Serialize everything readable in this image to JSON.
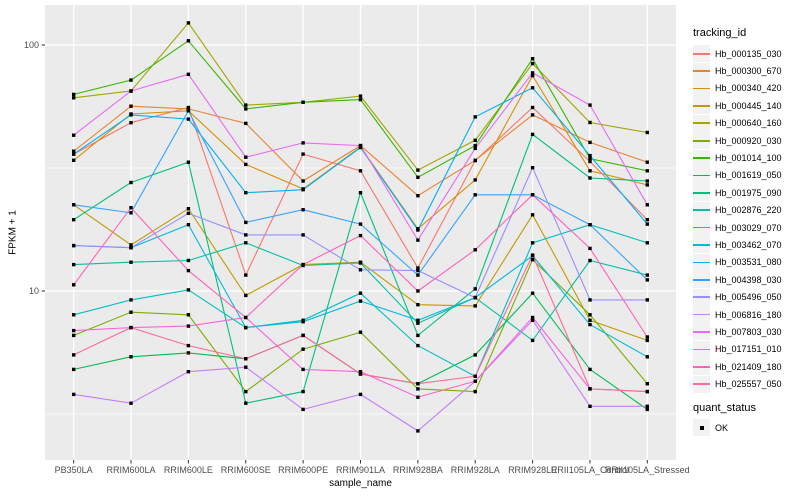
{
  "chart_data": {
    "type": "line",
    "title": "",
    "xlabel": "sample_name",
    "ylabel": "FPKM + 1",
    "y_scale": "log10",
    "ylim": [
      2.05,
      145
    ],
    "y_ticks": [
      10,
      100
    ],
    "y_minor_gridlines": [
      3.162,
      31.62
    ],
    "grid": "on",
    "panel_bg": "#EBEBEB",
    "grid_color": "#FFFFFF",
    "tick_label_color": "#4D4D4D",
    "point_shape": "filled-square",
    "point_color": "#000000",
    "categories": [
      "PB350LA",
      "RRIM600LA",
      "RRIM600LE",
      "RRIM600SE",
      "RRIM600PE",
      "RRIM901LA",
      "RRIM928BA",
      "RRIM928LA",
      "RRIM928LE",
      "RRII105LA_Control",
      "RRII105LA_Stressed"
    ],
    "series": [
      {
        "name": "Hb_000135_030",
        "color": "#F8766D",
        "values": [
          36,
          48.3,
          55.7,
          11.6,
          36,
          30.8,
          12.4,
          33.9,
          55.7,
          33.6,
          19.5
        ]
      },
      {
        "name": "Hb_000300_670",
        "color": "#EA8331",
        "values": [
          37,
          56.4,
          55,
          48,
          28,
          39,
          24.4,
          34,
          52,
          40.2,
          33.4
        ]
      },
      {
        "name": "Hb_000340_420",
        "color": "#D89000",
        "values": [
          34,
          52.4,
          54,
          32.7,
          26,
          38.5,
          17.9,
          28.3,
          75,
          30.8,
          27
        ]
      },
      {
        "name": "Hb_000445_140",
        "color": "#C09B00",
        "values": [
          22.4,
          15.4,
          21.6,
          9.6,
          12.8,
          13.1,
          8.8,
          8.7,
          20.4,
          7.6,
          6.3
        ]
      },
      {
        "name": "Hb_000640_160",
        "color": "#A3A500",
        "values": [
          61,
          65,
          123,
          57,
          58.5,
          62,
          31,
          41,
          84,
          48.4,
          44.1
        ]
      },
      {
        "name": "Hb_000920_030",
        "color": "#7CAE00",
        "values": [
          6.6,
          8.2,
          8.0,
          3.9,
          5.8,
          6.8,
          4.0,
          3.9,
          13.4,
          8.0,
          4.2
        ]
      },
      {
        "name": "Hb_001014_100",
        "color": "#39B600",
        "values": [
          63,
          72,
          104,
          55,
          58.5,
          60,
          29,
          39,
          88,
          34.5,
          30.8
        ]
      },
      {
        "name": "Hb_001619_050",
        "color": "#00BB4E",
        "values": [
          4.8,
          5.4,
          5.6,
          5.3,
          6.6,
          4.6,
          4.2,
          5.5,
          9.8,
          4.8,
          3.3
        ]
      },
      {
        "name": "Hb_001975_090",
        "color": "#00BF7D",
        "values": [
          19.5,
          27.6,
          33.4,
          3.5,
          3.9,
          25.1,
          6.6,
          10.2,
          43.3,
          28.8,
          28
        ]
      },
      {
        "name": "Hb_002876_220",
        "color": "#00C1A3",
        "values": [
          12.8,
          13.1,
          13.3,
          15.7,
          12.7,
          13.0,
          7.4,
          9.4,
          6.3,
          13.3,
          11.6
        ]
      },
      {
        "name": "Hb_003029_070",
        "color": "#00BFC4",
        "values": [
          8.0,
          9.2,
          10.1,
          7.1,
          7.6,
          9.8,
          6.0,
          4.5,
          15.7,
          18.6,
          15.7
        ]
      },
      {
        "name": "Hb_003462_070",
        "color": "#00BADE",
        "values": [
          15.3,
          15.0,
          18.6,
          7.1,
          7.5,
          9.1,
          7.6,
          9.4,
          13.9,
          7.3,
          5.4
        ]
      },
      {
        "name": "Hb_003531_080",
        "color": "#00B0F6",
        "values": [
          36,
          52,
          50,
          25.1,
          25.8,
          38.3,
          17.7,
          51,
          67,
          35.5,
          18.7
        ]
      },
      {
        "name": "Hb_004398_030",
        "color": "#35A2FF",
        "values": [
          22.4,
          20.8,
          54,
          19,
          21.4,
          18.7,
          11.6,
          24.6,
          24.6,
          18.6,
          11.1
        ]
      },
      {
        "name": "Hb_005496_050",
        "color": "#9590FF",
        "values": [
          15.3,
          15.0,
          20.7,
          16.9,
          16.9,
          12.2,
          12.1,
          9.4,
          31.7,
          9.2,
          9.2
        ]
      },
      {
        "name": "Hb_006816_180",
        "color": "#C77CFF",
        "values": [
          3.8,
          3.5,
          4.7,
          4.9,
          3.3,
          3.8,
          2.7,
          4.3,
          7.6,
          3.4,
          3.4
        ]
      },
      {
        "name": "Hb_007803_030",
        "color": "#E76BF3",
        "values": [
          43,
          65,
          76,
          35,
          40,
          39,
          16.1,
          38,
          77,
          57,
          22.4
        ]
      },
      {
        "name": "Hb_017151_010",
        "color": "#FA62DB",
        "values": [
          6.9,
          7.1,
          7.2,
          7.8,
          4.8,
          4.7,
          3.7,
          4.3,
          7.8,
          4.0,
          3.9
        ]
      },
      {
        "name": "Hb_021409_180",
        "color": "#FF62BC",
        "values": [
          10.6,
          21.8,
          12.1,
          7.8,
          12.8,
          16.8,
          10.0,
          14.7,
          24.6,
          14.9,
          6.5
        ]
      },
      {
        "name": "Hb_025557_050",
        "color": "#FF6A98",
        "values": [
          5.5,
          7.1,
          6.0,
          5.3,
          6.6,
          4.6,
          4.2,
          4.5,
          14.0,
          4.0,
          3.9
        ]
      }
    ],
    "legend": {
      "position": "right",
      "key_bg": "#F2F2F2",
      "color_title": "tracking_id",
      "shape_title": "quant_status",
      "shape_items": [
        {
          "label": "OK"
        }
      ]
    }
  }
}
